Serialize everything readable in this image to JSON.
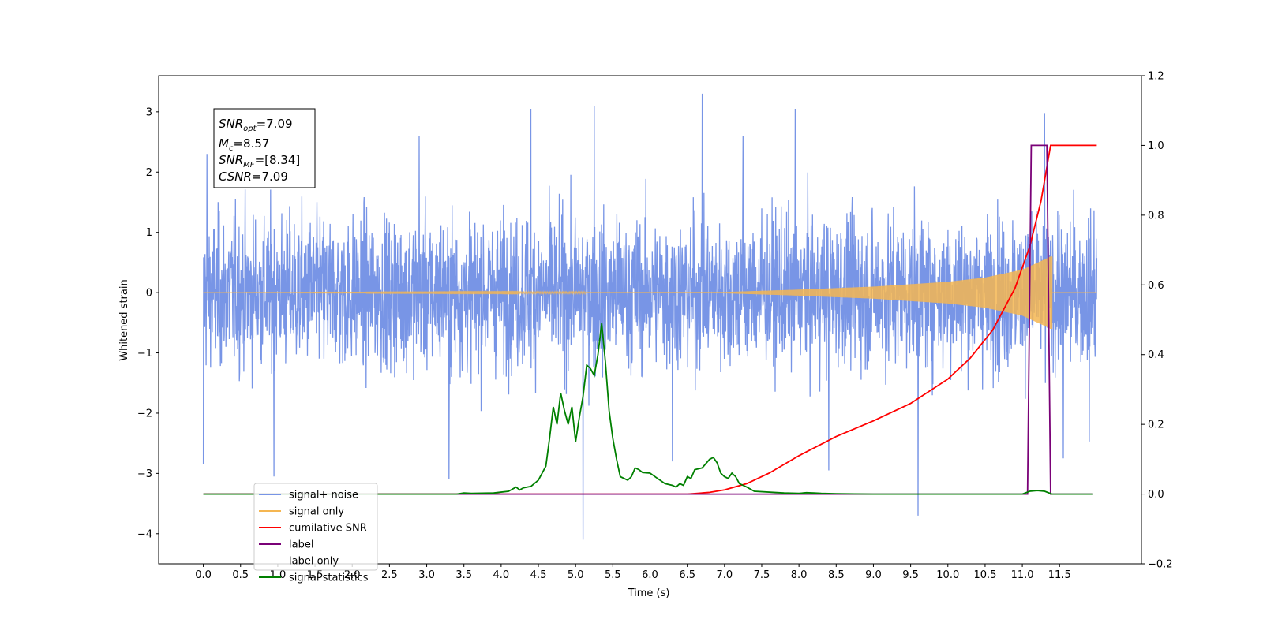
{
  "chart_data": {
    "type": "line",
    "title": "",
    "xlabel": "Time (s)",
    "ylabel": "Whitened strain",
    "y2label": "",
    "xlim": [
      -0.6,
      12.6
    ],
    "ylim": [
      -4.5,
      3.6
    ],
    "y2lim": [
      -0.2,
      1.2
    ],
    "x_ticks": [
      0.0,
      0.5,
      1.0,
      1.5,
      2.0,
      2.5,
      3.0,
      3.5,
      4.0,
      4.5,
      5.0,
      5.5,
      6.0,
      6.5,
      7.0,
      7.5,
      8.0,
      8.5,
      9.0,
      9.5,
      10.0,
      10.5,
      11.0,
      11.5
    ],
    "x_tick_labels": [
      "0.0",
      "0.5",
      "1.0",
      "1.5",
      "2.0",
      "2.5",
      "3.0",
      "3.5",
      "4.0",
      "4.5",
      "5.0",
      "5.5",
      "6.0",
      "6.5",
      "7.0",
      "7.5",
      "8.0",
      "8.5",
      "9.0",
      "9.5",
      "10.0",
      "10.5",
      "11.0",
      "11.5"
    ],
    "y_ticks": [
      -4,
      -3,
      -2,
      -1,
      0,
      1,
      2,
      3
    ],
    "y_tick_labels": [
      "−4",
      "−3",
      "−2",
      "−1",
      "0",
      "1",
      "2",
      "3"
    ],
    "y2_ticks": [
      -0.2,
      0.0,
      0.2,
      0.4,
      0.6,
      0.8,
      1.0,
      1.2
    ],
    "y2_tick_labels": [
      "−0.2",
      "0.0",
      "0.2",
      "0.4",
      "0.6",
      "0.8",
      "1.0",
      "1.2"
    ],
    "grid": false,
    "legend_placement": "lower-left",
    "annotation": {
      "snr_opt": "=7.09",
      "mc": "=8.57",
      "snr_mf": "=[8.34]",
      "csnr": "=7.09"
    },
    "series": [
      {
        "name": "signal+ noise",
        "axis": "left",
        "color": "#7895e6",
        "kind": "noise",
        "x_range": [
          0.0,
          12.0
        ],
        "typical_amplitude": 1.7,
        "spikes": [
          {
            "x": 0.0,
            "y": -2.85
          },
          {
            "x": 0.05,
            "y": 2.3
          },
          {
            "x": 0.95,
            "y": -3.05
          },
          {
            "x": 2.9,
            "y": 2.6
          },
          {
            "x": 3.3,
            "y": -3.1
          },
          {
            "x": 4.4,
            "y": 3.05
          },
          {
            "x": 5.1,
            "y": -4.1
          },
          {
            "x": 5.25,
            "y": 3.1
          },
          {
            "x": 6.3,
            "y": -2.8
          },
          {
            "x": 6.7,
            "y": 3.3
          },
          {
            "x": 7.25,
            "y": 2.6
          },
          {
            "x": 7.95,
            "y": 3.05
          },
          {
            "x": 8.4,
            "y": -2.95
          },
          {
            "x": 9.6,
            "y": -3.7
          },
          {
            "x": 11.3,
            "y": 2.98
          },
          {
            "x": 11.55,
            "y": -2.75
          },
          {
            "x": 11.9,
            "y": -2.47
          }
        ]
      },
      {
        "name": "signal only",
        "axis": "left",
        "color": "#f5b651",
        "kind": "chirp",
        "x_range": [
          0.0,
          11.4
        ],
        "envelope": [
          [
            0.0,
            0.0
          ],
          [
            7.0,
            0.01
          ],
          [
            8.0,
            0.05
          ],
          [
            9.0,
            0.1
          ],
          [
            10.0,
            0.18
          ],
          [
            10.5,
            0.25
          ],
          [
            11.0,
            0.38
          ],
          [
            11.3,
            0.55
          ],
          [
            11.38,
            0.6
          ]
        ]
      },
      {
        "name": "cumilative SNR",
        "axis": "right",
        "color": "#ff0000",
        "x": [
          0.0,
          6.5,
          6.8,
          7.0,
          7.3,
          7.6,
          8.0,
          8.5,
          9.0,
          9.5,
          10.0,
          10.3,
          10.6,
          10.9,
          11.1,
          11.25,
          11.38,
          12.0
        ],
        "y": [
          0.0,
          0.0,
          0.005,
          0.012,
          0.03,
          0.06,
          0.11,
          0.165,
          0.21,
          0.26,
          0.33,
          0.39,
          0.47,
          0.59,
          0.71,
          0.84,
          1.0,
          1.0
        ]
      },
      {
        "name": "label",
        "axis": "right",
        "color": "#7a0177",
        "x": [
          0.0,
          11.07,
          11.12,
          11.33,
          11.38,
          11.95
        ],
        "y": [
          0.0,
          0.0,
          1.0,
          1.0,
          0.0,
          0.0
        ]
      },
      {
        "name": "label only",
        "axis": "right",
        "color": "#ffffff",
        "x": [],
        "y": []
      },
      {
        "name": "signal statistics",
        "axis": "right",
        "color": "#008000",
        "x": [
          0.0,
          3.4,
          3.5,
          3.6,
          3.9,
          4.1,
          4.2,
          4.25,
          4.3,
          4.4,
          4.5,
          4.6,
          4.65,
          4.7,
          4.75,
          4.8,
          4.85,
          4.9,
          4.95,
          5.0,
          5.05,
          5.1,
          5.15,
          5.2,
          5.25,
          5.3,
          5.35,
          5.4,
          5.45,
          5.5,
          5.55,
          5.6,
          5.7,
          5.75,
          5.8,
          5.85,
          5.9,
          6.0,
          6.1,
          6.2,
          6.3,
          6.35,
          6.4,
          6.45,
          6.5,
          6.55,
          6.6,
          6.7,
          6.8,
          6.85,
          6.9,
          6.95,
          7.0,
          7.05,
          7.1,
          7.15,
          7.2,
          7.3,
          7.4,
          7.8,
          8.0,
          8.1,
          8.2,
          8.3,
          8.5,
          9.0,
          11.0,
          11.1,
          11.2,
          11.3,
          11.4,
          11.95
        ],
        "y": [
          0.0,
          0.0,
          0.003,
          0.002,
          0.003,
          0.008,
          0.02,
          0.012,
          0.018,
          0.022,
          0.04,
          0.08,
          0.16,
          0.25,
          0.2,
          0.29,
          0.24,
          0.2,
          0.25,
          0.15,
          0.22,
          0.28,
          0.37,
          0.36,
          0.34,
          0.4,
          0.49,
          0.38,
          0.24,
          0.16,
          0.1,
          0.05,
          0.04,
          0.05,
          0.075,
          0.07,
          0.062,
          0.06,
          0.045,
          0.03,
          0.025,
          0.02,
          0.03,
          0.025,
          0.05,
          0.045,
          0.07,
          0.075,
          0.1,
          0.105,
          0.09,
          0.06,
          0.05,
          0.045,
          0.06,
          0.05,
          0.03,
          0.02,
          0.008,
          0.003,
          0.002,
          0.004,
          0.003,
          0.002,
          0.001,
          0.0,
          0.0,
          0.008,
          0.01,
          0.008,
          0.0,
          0.0
        ]
      }
    ]
  }
}
